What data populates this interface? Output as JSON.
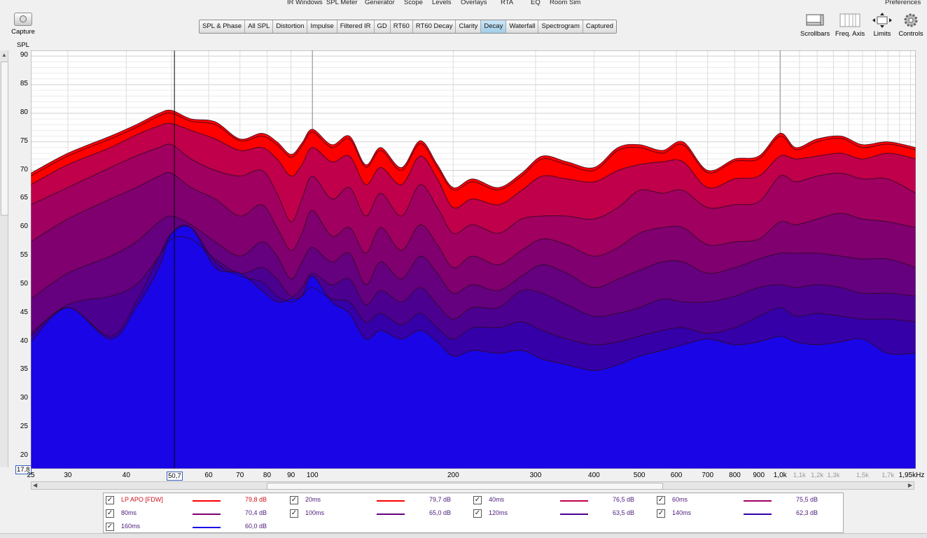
{
  "menu": [
    "IR Windows",
    "SPL Meter",
    "Generator",
    "Scope",
    "Levels",
    "Overlays",
    "RTA",
    "EQ",
    "Room Sim",
    "Preferences"
  ],
  "capture_label": "Capture",
  "tabs": [
    "SPL & Phase",
    "All SPL",
    "Distortion",
    "Impulse",
    "Filtered IR",
    "GD",
    "RT60",
    "RT60 Decay",
    "Clarity",
    "Decay",
    "Waterfall",
    "Spectrogram",
    "Captured"
  ],
  "active_tab": "Decay",
  "right_tools": [
    "Scrollbars",
    "Freq. Axis",
    "Limits",
    "Controls"
  ],
  "colors": {
    "top": "#ff0000",
    "bottom": "#1a05e6",
    "active_tab": "#a6d1ec"
  },
  "chart_data": {
    "type": "area",
    "ylabel": "SPL",
    "ylim": [
      17.8,
      91
    ],
    "ymin_label": "17,8",
    "yticks": [
      20,
      25,
      30,
      35,
      40,
      45,
      50,
      55,
      60,
      65,
      70,
      75,
      80,
      85,
      90
    ],
    "x_scale": "log",
    "xlim": [
      25,
      1950
    ],
    "xticks": [
      {
        "f": 25,
        "label": "25",
        "minor": false
      },
      {
        "f": 30,
        "label": "30",
        "minor": false
      },
      {
        "f": 40,
        "label": "40",
        "minor": false
      },
      {
        "f": 60,
        "label": "60",
        "minor": false
      },
      {
        "f": 70,
        "label": "70",
        "minor": false
      },
      {
        "f": 80,
        "label": "80",
        "minor": false
      },
      {
        "f": 90,
        "label": "90",
        "minor": false
      },
      {
        "f": 100,
        "label": "100",
        "minor": false
      },
      {
        "f": 200,
        "label": "200",
        "minor": false
      },
      {
        "f": 300,
        "label": "300",
        "minor": false
      },
      {
        "f": 400,
        "label": "400",
        "minor": false
      },
      {
        "f": 500,
        "label": "500",
        "minor": false
      },
      {
        "f": 600,
        "label": "600",
        "minor": false
      },
      {
        "f": 700,
        "label": "700",
        "minor": false
      },
      {
        "f": 800,
        "label": "800",
        "minor": false
      },
      {
        "f": 900,
        "label": "900",
        "minor": false
      },
      {
        "f": 1000,
        "label": "1,0k",
        "minor": false
      },
      {
        "f": 1100,
        "label": "1,1k",
        "minor": true
      },
      {
        "f": 1200,
        "label": "1,2k",
        "minor": true
      },
      {
        "f": 1300,
        "label": "1,3k",
        "minor": true
      },
      {
        "f": 1500,
        "label": "1,5k",
        "minor": true
      },
      {
        "f": 1700,
        "label": "1,7k",
        "minor": true
      }
    ],
    "x_end_label": "1,95kHz",
    "cursor": {
      "f": 50.7,
      "label": "50,7"
    },
    "vlines": [
      100,
      1000
    ],
    "x": [
      25,
      30,
      37,
      42,
      47,
      50,
      55,
      62,
      70,
      78,
      84,
      90,
      95,
      100,
      110,
      120,
      130,
      140,
      155,
      170,
      185,
      200,
      220,
      250,
      280,
      310,
      350,
      400,
      450,
      500,
      560,
      620,
      700,
      800,
      900,
      1000,
      1080,
      1200,
      1350,
      1500,
      1700,
      1950
    ],
    "series": [
      {
        "name": "LP APO [FDW]",
        "color": "#ff0000",
        "value_label": "79,8 dB",
        "values": [
          69.5,
          73,
          76,
          78,
          80,
          80.5,
          79,
          78.5,
          75.5,
          76.5,
          75,
          72.8,
          74.8,
          77.2,
          74.5,
          76,
          71,
          74,
          70.5,
          75.2,
          71,
          67,
          68.5,
          67,
          69.5,
          72.5,
          71.5,
          70.5,
          74,
          74.5,
          73.5,
          75,
          70,
          72,
          72.5,
          76.5,
          74,
          75.5,
          76,
          74.5,
          75,
          74
        ]
      },
      {
        "name": "20ms",
        "color": "#ff0000",
        "value_label": "79,7 dB",
        "values": [
          69,
          72.5,
          75.5,
          77.5,
          79.5,
          80,
          78.6,
          78,
          75.2,
          76,
          74.5,
          72.3,
          74.3,
          76.7,
          74,
          75.5,
          70.6,
          73.5,
          70,
          74.7,
          70.5,
          66.6,
          68,
          66.6,
          69,
          72,
          71,
          70,
          73.5,
          74,
          73,
          74.5,
          69.6,
          71.6,
          72,
          76,
          73.6,
          75,
          75.6,
          74,
          74.6,
          73.6
        ]
      },
      {
        "name": "40ms",
        "color": "#c0004a",
        "value_label": "76,5 dB",
        "values": [
          67.5,
          71,
          74,
          76.2,
          77.8,
          78.2,
          77,
          75.5,
          73.5,
          74,
          72,
          69,
          71,
          74,
          71.5,
          72.5,
          67.5,
          70.5,
          67.5,
          72.5,
          68.5,
          63.5,
          65,
          64,
          66.5,
          69,
          68.5,
          68,
          70,
          71,
          71.5,
          71.5,
          67,
          68.5,
          69,
          72.5,
          72,
          72.5,
          73,
          72,
          73,
          72
        ]
      },
      {
        "name": "60ms",
        "color": "#a00060",
        "value_label": "75,5 dB",
        "values": [
          64,
          67,
          70.5,
          72.5,
          74,
          74.5,
          72,
          70,
          69,
          70,
          66,
          61,
          65,
          69,
          65,
          67,
          62,
          66,
          62,
          67.5,
          63.5,
          59,
          60.5,
          59,
          61.5,
          62,
          62,
          61.5,
          63.5,
          66.5,
          66,
          66.5,
          63.5,
          64,
          64.5,
          69,
          68,
          69,
          69.5,
          68.5,
          68.5,
          66
        ]
      },
      {
        "name": "80ms",
        "color": "#800070",
        "value_label": "70,4 dB",
        "values": [
          57.5,
          61.5,
          65,
          67,
          69,
          69.5,
          67,
          65,
          62,
          64,
          60,
          56,
          59,
          63,
          58.5,
          60,
          55.5,
          60,
          56,
          60.5,
          57,
          53,
          55,
          53.5,
          56,
          58,
          57,
          55,
          56.5,
          59,
          60,
          60,
          57,
          57.5,
          58,
          61,
          60.5,
          61.5,
          62.5,
          61.5,
          61,
          60
        ]
      },
      {
        "name": "100ms",
        "color": "#65007f",
        "value_label": "65,0 dB",
        "values": [
          47.5,
          52,
          55,
          57.5,
          61,
          62,
          60.5,
          57.5,
          55,
          57.5,
          55,
          51,
          54,
          56.5,
          54,
          55.5,
          50,
          54,
          51,
          55,
          52,
          48.5,
          50,
          49,
          51.5,
          53.5,
          52,
          49.5,
          51,
          52.5,
          54,
          54,
          52,
          53,
          54.5,
          55.5,
          55.5,
          55.5,
          55,
          54.5,
          54.5,
          53
        ]
      },
      {
        "name": "120ms",
        "color": "#4c0090",
        "value_label": "63,5 dB",
        "values": [
          41.5,
          46.5,
          48,
          50,
          55,
          58,
          58,
          54.5,
          52,
          53,
          51,
          48,
          49.5,
          52,
          50,
          51,
          46.5,
          49,
          47,
          49.5,
          46.5,
          44,
          46,
          46,
          49,
          48.5,
          46.5,
          44.5,
          45,
          46,
          47.5,
          47,
          47,
          48,
          49.5,
          50,
          49.5,
          50,
          49.5,
          48.5,
          48.5,
          48
        ]
      },
      {
        "name": "140ms",
        "color": "#3500a8",
        "value_label": "62,3 dB",
        "values": [
          41,
          46,
          41,
          47,
          55,
          59,
          60,
          54,
          51.5,
          50.5,
          48,
          47,
          48,
          49.5,
          47.5,
          47,
          43.5,
          45,
          43,
          45,
          42.5,
          40.5,
          42.5,
          42.5,
          43.5,
          42,
          40.5,
          39.5,
          40,
          41,
          42,
          42.5,
          41.5,
          42.5,
          44.5,
          46,
          44.5,
          45,
          44.5,
          44,
          44,
          43.5
        ]
      },
      {
        "name": "160ms",
        "color": "#1a05e6",
        "value_label": "60,0 dB",
        "values": [
          40,
          46,
          40.5,
          46,
          53,
          59,
          60,
          53,
          52,
          49,
          47,
          47.5,
          48,
          51.5,
          47,
          45,
          40.5,
          42,
          40.5,
          42,
          40,
          37.5,
          38.5,
          38,
          38.5,
          37,
          36,
          35,
          36,
          37.5,
          38.5,
          39.5,
          40.5,
          39.5,
          40,
          41,
          40,
          39.5,
          40,
          40.5,
          38,
          38
        ]
      }
    ]
  }
}
